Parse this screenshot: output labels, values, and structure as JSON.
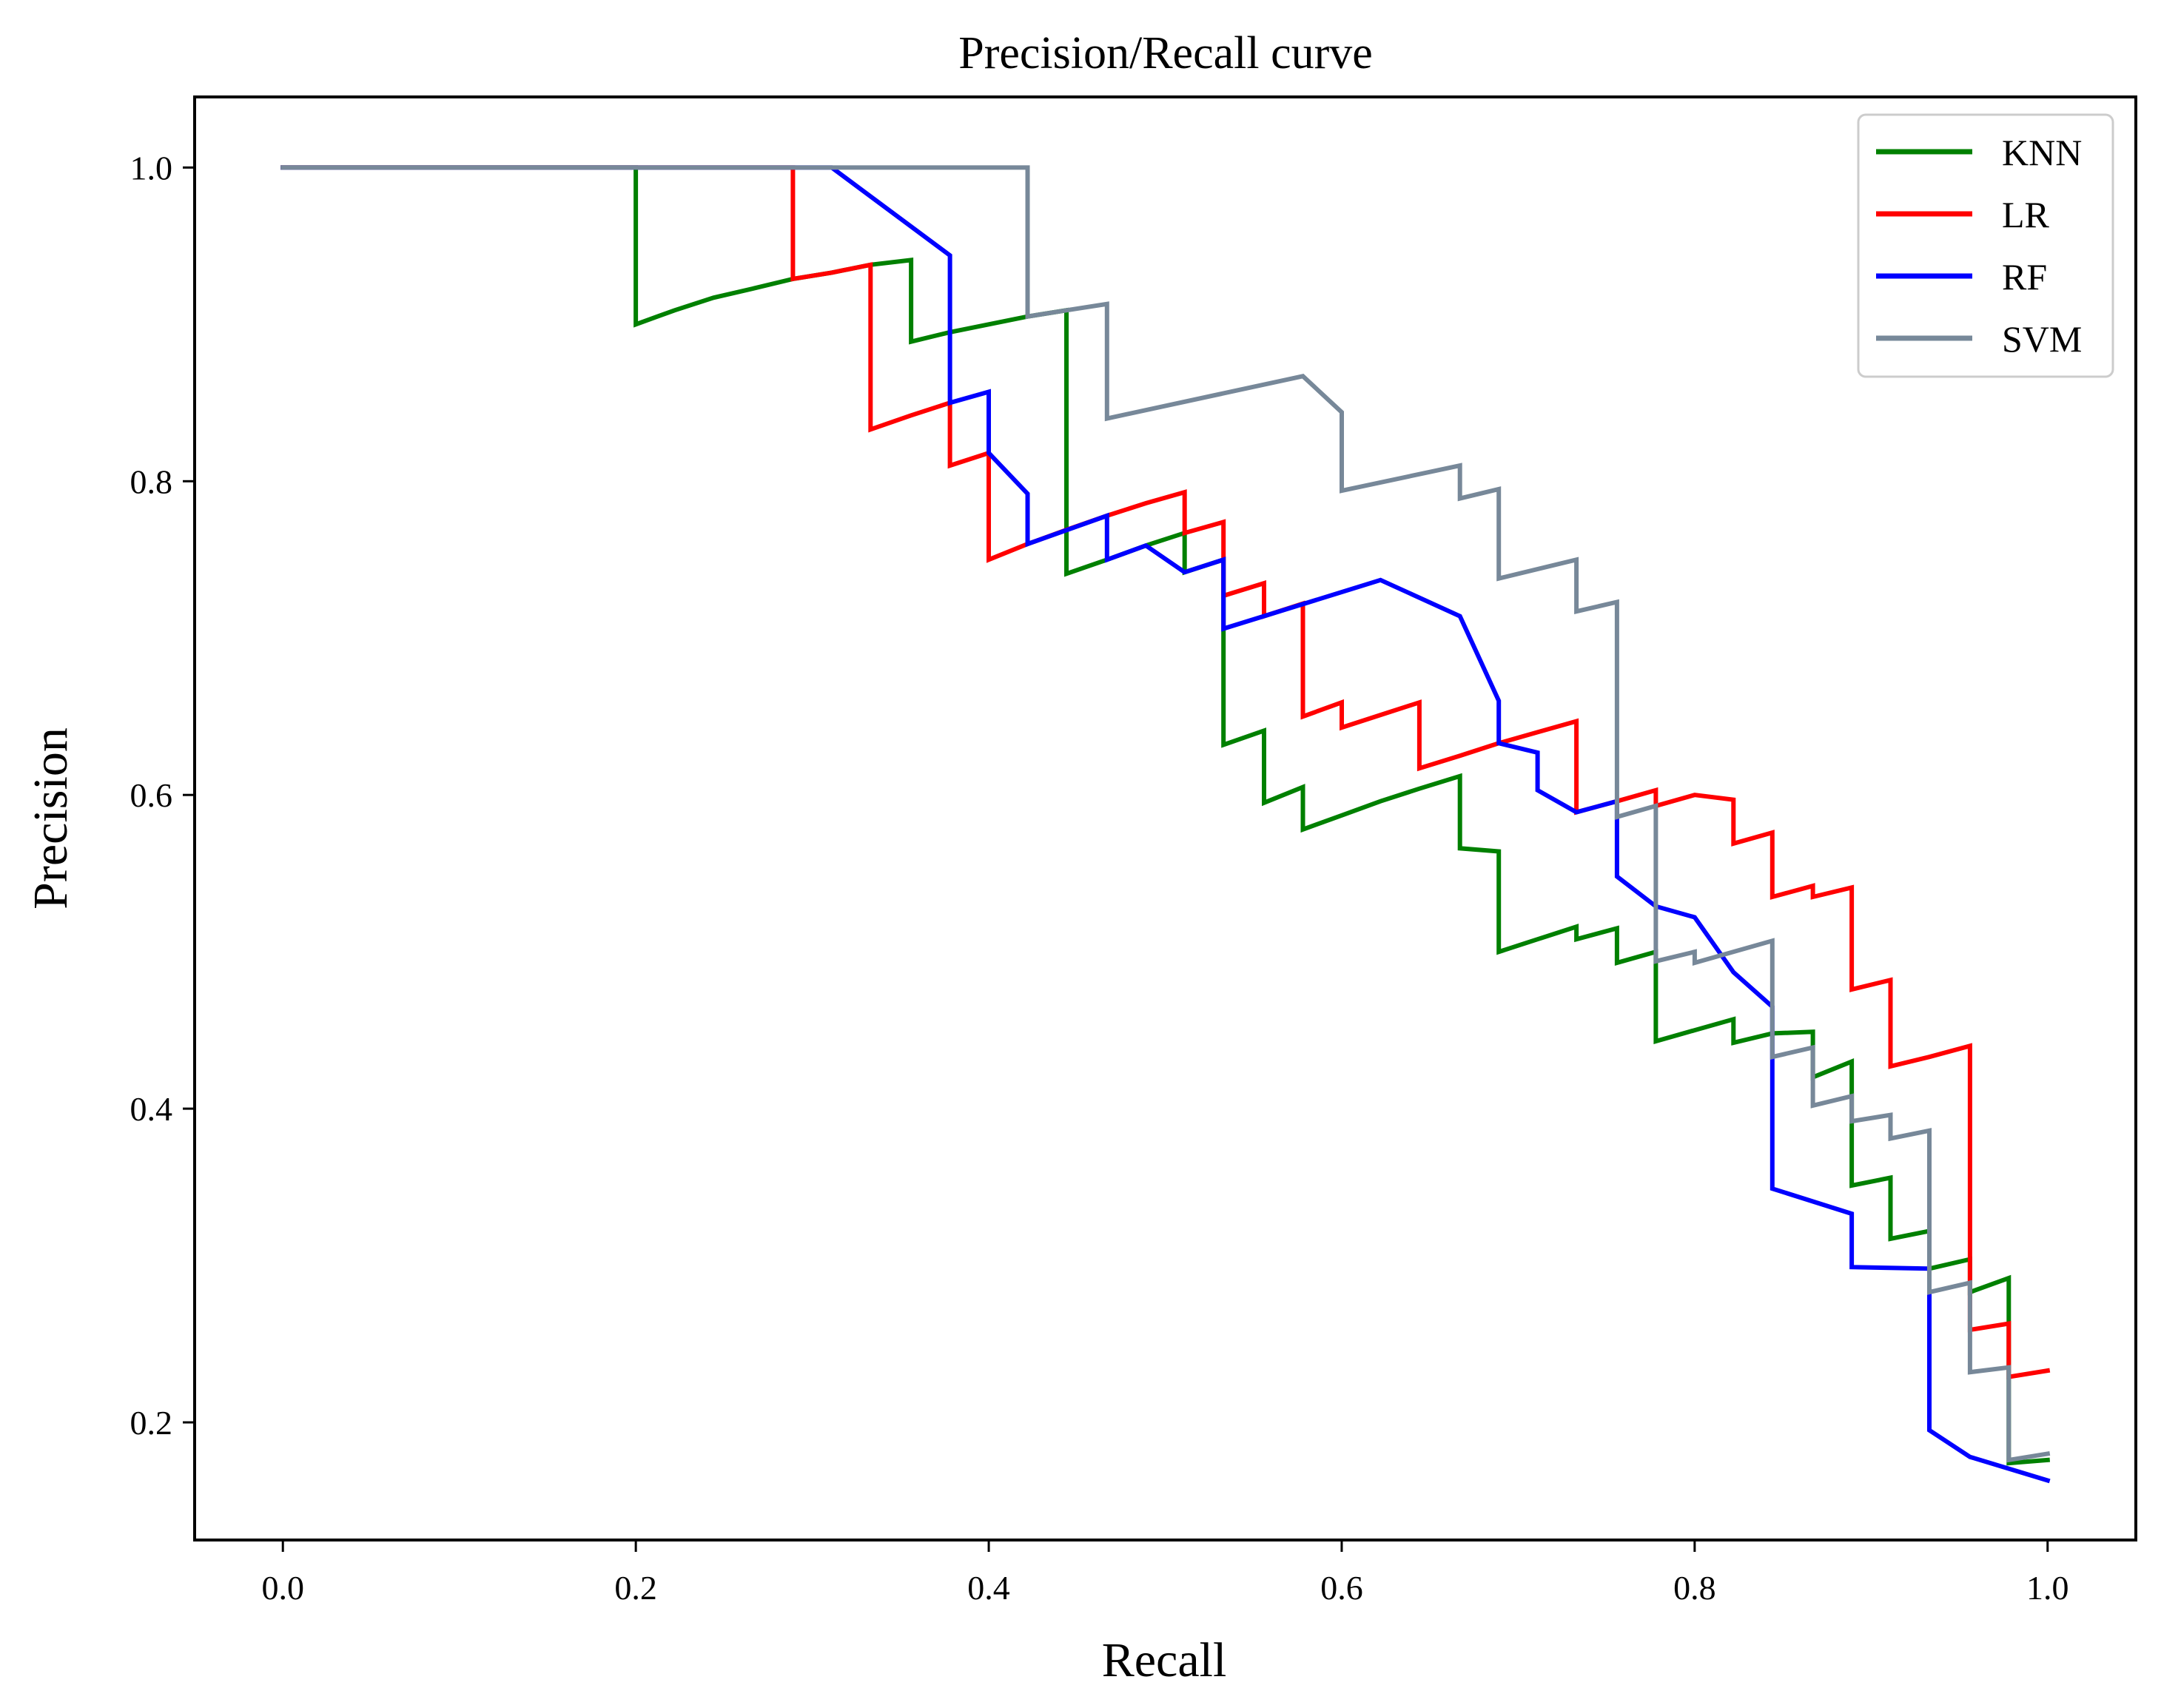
{
  "chart_data": {
    "type": "line",
    "title": "Precision/Recall curve",
    "xlabel": "Recall",
    "ylabel": "Precision",
    "xlim": [
      -0.05,
      1.05
    ],
    "ylim": [
      0.125,
      1.045
    ],
    "xticks": [
      0.0,
      0.2,
      0.4,
      0.6,
      0.8,
      1.0
    ],
    "xtick_labels": [
      "0.0",
      "0.2",
      "0.4",
      "0.6",
      "0.8",
      "1.0"
    ],
    "yticks": [
      0.2,
      0.4,
      0.6,
      0.8,
      1.0
    ],
    "ytick_labels": [
      "0.2",
      "0.4",
      "0.6",
      "0.8",
      "1.0"
    ],
    "grid": false,
    "legend_position": "top-right",
    "series": [
      {
        "name": "KNN",
        "color": "#008000",
        "points": [
          [
            0.0,
            1.0
          ],
          [
            0.2,
            1.0
          ],
          [
            0.2,
            0.9
          ],
          [
            0.222,
            0.909
          ],
          [
            0.244,
            0.917
          ],
          [
            0.267,
            0.923
          ],
          [
            0.289,
            0.929
          ],
          [
            0.311,
            0.933
          ],
          [
            0.333,
            0.938
          ],
          [
            0.356,
            0.941
          ],
          [
            0.356,
            0.889
          ],
          [
            0.378,
            0.895
          ],
          [
            0.4,
            0.9
          ],
          [
            0.422,
            0.905
          ],
          [
            0.444,
            0.909
          ],
          [
            0.444,
            0.741
          ],
          [
            0.467,
            0.75
          ],
          [
            0.489,
            0.759
          ],
          [
            0.511,
            0.767
          ],
          [
            0.511,
            0.742
          ],
          [
            0.533,
            0.75
          ],
          [
            0.533,
            0.632
          ],
          [
            0.556,
            0.641
          ],
          [
            0.556,
            0.595
          ],
          [
            0.578,
            0.605
          ],
          [
            0.578,
            0.578
          ],
          [
            0.6,
            0.587
          ],
          [
            0.622,
            0.596
          ],
          [
            0.644,
            0.604
          ],
          [
            0.667,
            0.612
          ],
          [
            0.667,
            0.566
          ],
          [
            0.689,
            0.564
          ],
          [
            0.689,
            0.5
          ],
          [
            0.711,
            0.508
          ],
          [
            0.733,
            0.516
          ],
          [
            0.733,
            0.508
          ],
          [
            0.756,
            0.515
          ],
          [
            0.756,
            0.493
          ],
          [
            0.778,
            0.5
          ],
          [
            0.778,
            0.443
          ],
          [
            0.8,
            0.45
          ],
          [
            0.822,
            0.457
          ],
          [
            0.822,
            0.442
          ],
          [
            0.844,
            0.448
          ],
          [
            0.867,
            0.449
          ],
          [
            0.867,
            0.42
          ],
          [
            0.889,
            0.43
          ],
          [
            0.889,
            0.351
          ],
          [
            0.911,
            0.356
          ],
          [
            0.911,
            0.317
          ],
          [
            0.933,
            0.322
          ],
          [
            0.933,
            0.298
          ],
          [
            0.956,
            0.304
          ],
          [
            0.956,
            0.283
          ],
          [
            0.978,
            0.292
          ],
          [
            0.978,
            0.174
          ],
          [
            1.0,
            0.176
          ]
        ]
      },
      {
        "name": "LR",
        "color": "#ff0000",
        "points": [
          [
            0.0,
            1.0
          ],
          [
            0.289,
            1.0
          ],
          [
            0.289,
            0.929
          ],
          [
            0.311,
            0.933
          ],
          [
            0.333,
            0.938
          ],
          [
            0.333,
            0.833
          ],
          [
            0.356,
            0.842
          ],
          [
            0.378,
            0.85
          ],
          [
            0.378,
            0.81
          ],
          [
            0.4,
            0.818
          ],
          [
            0.4,
            0.75
          ],
          [
            0.422,
            0.76
          ],
          [
            0.444,
            0.769
          ],
          [
            0.467,
            0.778
          ],
          [
            0.489,
            0.786
          ],
          [
            0.511,
            0.793
          ],
          [
            0.511,
            0.767
          ],
          [
            0.533,
            0.774
          ],
          [
            0.533,
            0.727
          ],
          [
            0.556,
            0.735
          ],
          [
            0.556,
            0.714
          ],
          [
            0.578,
            0.722
          ],
          [
            0.578,
            0.65
          ],
          [
            0.6,
            0.659
          ],
          [
            0.6,
            0.643
          ],
          [
            0.622,
            0.651
          ],
          [
            0.644,
            0.659
          ],
          [
            0.644,
            0.617
          ],
          [
            0.667,
            0.625
          ],
          [
            0.689,
            0.633
          ],
          [
            0.711,
            0.64
          ],
          [
            0.733,
            0.647
          ],
          [
            0.733,
            0.589
          ],
          [
            0.756,
            0.596
          ],
          [
            0.778,
            0.603
          ],
          [
            0.778,
            0.593
          ],
          [
            0.8,
            0.6
          ],
          [
            0.822,
            0.597
          ],
          [
            0.822,
            0.569
          ],
          [
            0.844,
            0.576
          ],
          [
            0.844,
            0.535
          ],
          [
            0.867,
            0.542
          ],
          [
            0.867,
            0.535
          ],
          [
            0.889,
            0.541
          ],
          [
            0.889,
            0.476
          ],
          [
            0.911,
            0.482
          ],
          [
            0.911,
            0.427
          ],
          [
            0.933,
            0.433
          ],
          [
            0.956,
            0.44
          ],
          [
            0.956,
            0.259
          ],
          [
            0.978,
            0.263
          ],
          [
            0.978,
            0.229
          ],
          [
            1.0,
            0.233
          ]
        ]
      },
      {
        "name": "RF",
        "color": "#0000ff",
        "points": [
          [
            0.0,
            1.0
          ],
          [
            0.311,
            1.0
          ],
          [
            0.378,
            0.944
          ],
          [
            0.378,
            0.85
          ],
          [
            0.4,
            0.857
          ],
          [
            0.4,
            0.818
          ],
          [
            0.422,
            0.792
          ],
          [
            0.422,
            0.76
          ],
          [
            0.467,
            0.778
          ],
          [
            0.467,
            0.75
          ],
          [
            0.489,
            0.759
          ],
          [
            0.511,
            0.742
          ],
          [
            0.533,
            0.75
          ],
          [
            0.533,
            0.706
          ],
          [
            0.622,
            0.737
          ],
          [
            0.667,
            0.714
          ],
          [
            0.689,
            0.66
          ],
          [
            0.689,
            0.633
          ],
          [
            0.711,
            0.627
          ],
          [
            0.711,
            0.603
          ],
          [
            0.733,
            0.589
          ],
          [
            0.756,
            0.596
          ],
          [
            0.756,
            0.548
          ],
          [
            0.778,
            0.529
          ],
          [
            0.8,
            0.522
          ],
          [
            0.822,
            0.487
          ],
          [
            0.844,
            0.465
          ],
          [
            0.844,
            0.349
          ],
          [
            0.889,
            0.333
          ],
          [
            0.889,
            0.299
          ],
          [
            0.933,
            0.298
          ],
          [
            0.933,
            0.195
          ],
          [
            0.956,
            0.178
          ],
          [
            1.0,
            0.163
          ]
        ]
      },
      {
        "name": "SVM",
        "color": "#778899",
        "points": [
          [
            0.0,
            1.0
          ],
          [
            0.422,
            1.0
          ],
          [
            0.422,
            0.905
          ],
          [
            0.444,
            0.909
          ],
          [
            0.467,
            0.913
          ],
          [
            0.467,
            0.84
          ],
          [
            0.578,
            0.867
          ],
          [
            0.6,
            0.844
          ],
          [
            0.6,
            0.794
          ],
          [
            0.667,
            0.81
          ],
          [
            0.667,
            0.789
          ],
          [
            0.689,
            0.795
          ],
          [
            0.689,
            0.738
          ],
          [
            0.733,
            0.75
          ],
          [
            0.733,
            0.717
          ],
          [
            0.756,
            0.723
          ],
          [
            0.756,
            0.586
          ],
          [
            0.778,
            0.593
          ],
          [
            0.778,
            0.494
          ],
          [
            0.8,
            0.5
          ],
          [
            0.8,
            0.493
          ],
          [
            0.844,
            0.507
          ],
          [
            0.844,
            0.433
          ],
          [
            0.867,
            0.439
          ],
          [
            0.867,
            0.402
          ],
          [
            0.889,
            0.408
          ],
          [
            0.889,
            0.392
          ],
          [
            0.911,
            0.396
          ],
          [
            0.911,
            0.381
          ],
          [
            0.933,
            0.386
          ],
          [
            0.933,
            0.283
          ],
          [
            0.956,
            0.289
          ],
          [
            0.956,
            0.232
          ],
          [
            0.978,
            0.235
          ],
          [
            0.978,
            0.176
          ],
          [
            1.0,
            0.18
          ]
        ]
      }
    ]
  }
}
